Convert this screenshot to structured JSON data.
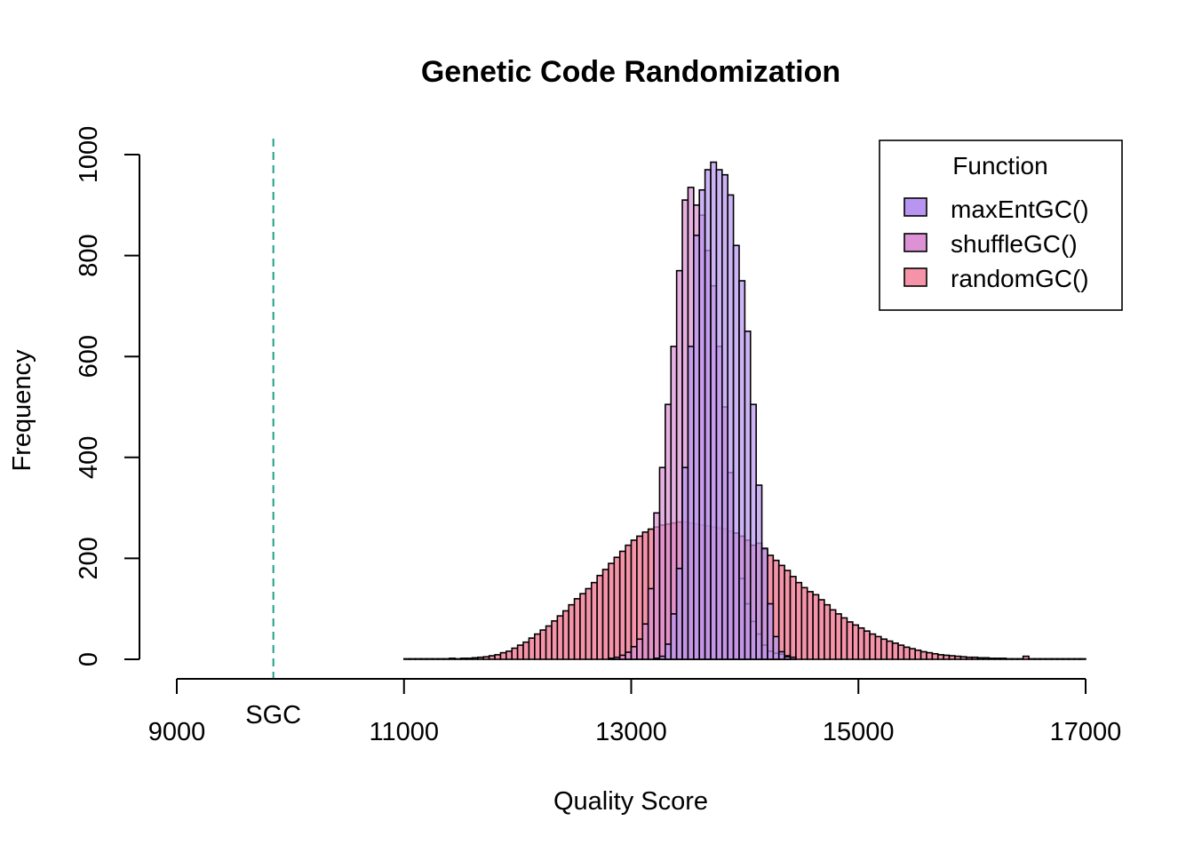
{
  "chart_data": {
    "type": "bar",
    "title": "Genetic Code Randomization",
    "xlabel": "Quality Score",
    "ylabel": "Frequency",
    "xlim": [
      9000,
      17000
    ],
    "ylim": [
      0,
      1000
    ],
    "x_ticks": [
      "9000",
      "11000",
      "13000",
      "15000",
      "17000"
    ],
    "y_ticks": [
      "0",
      "200",
      "400",
      "600",
      "800",
      "1000"
    ],
    "bin_width": 50,
    "grid": false,
    "legend": {
      "title": "Function",
      "placement": "top-right"
    },
    "reference_line": {
      "label": "SGC",
      "x": 9850,
      "color": "#1f9e89",
      "style": "dashed"
    },
    "series": [
      {
        "name": "maxEntGC()",
        "color": "#b895f0",
        "bins": [
          [
            13200,
            2
          ],
          [
            13250,
            6
          ],
          [
            13300,
            30
          ],
          [
            13350,
            90
          ],
          [
            13400,
            180
          ],
          [
            13450,
            380
          ],
          [
            13500,
            620
          ],
          [
            13550,
            840
          ],
          [
            13600,
            930
          ],
          [
            13650,
            970
          ],
          [
            13700,
            985
          ],
          [
            13750,
            970
          ],
          [
            13800,
            960
          ],
          [
            13850,
            920
          ],
          [
            13900,
            820
          ],
          [
            13950,
            750
          ],
          [
            14000,
            650
          ],
          [
            14050,
            505
          ],
          [
            14100,
            345
          ],
          [
            14150,
            220
          ],
          [
            14200,
            110
          ],
          [
            14250,
            45
          ],
          [
            14300,
            15
          ],
          [
            14350,
            5
          ]
        ]
      },
      {
        "name": "shuffleGC()",
        "color": "#dd92d6",
        "bins": [
          [
            12800,
            2
          ],
          [
            12850,
            4
          ],
          [
            12900,
            8
          ],
          [
            12950,
            14
          ],
          [
            13000,
            25
          ],
          [
            13050,
            40
          ],
          [
            13100,
            70
          ],
          [
            13150,
            140
          ],
          [
            13200,
            290
          ],
          [
            13250,
            380
          ],
          [
            13300,
            505
          ],
          [
            13350,
            620
          ],
          [
            13400,
            770
          ],
          [
            13450,
            910
          ],
          [
            13500,
            935
          ],
          [
            13550,
            900
          ],
          [
            13600,
            880
          ],
          [
            13650,
            810
          ],
          [
            13700,
            740
          ],
          [
            13750,
            620
          ],
          [
            13800,
            500
          ],
          [
            13850,
            370
          ],
          [
            13900,
            250
          ],
          [
            13950,
            160
          ],
          [
            14000,
            110
          ],
          [
            14050,
            75
          ],
          [
            14100,
            50
          ],
          [
            14150,
            28
          ],
          [
            14200,
            16
          ],
          [
            14250,
            12
          ],
          [
            14300,
            10
          ],
          [
            14350,
            7
          ],
          [
            14400,
            4
          ]
        ]
      },
      {
        "name": "randomGC()",
        "color": "#f593a8",
        "bins": [
          [
            11000,
            1
          ],
          [
            11050,
            1
          ],
          [
            11100,
            1
          ],
          [
            11150,
            1
          ],
          [
            11200,
            1
          ],
          [
            11250,
            1
          ],
          [
            11300,
            1
          ],
          [
            11350,
            1
          ],
          [
            11400,
            2
          ],
          [
            11450,
            1
          ],
          [
            11500,
            2
          ],
          [
            11550,
            2
          ],
          [
            11600,
            3
          ],
          [
            11650,
            4
          ],
          [
            11700,
            5
          ],
          [
            11750,
            7
          ],
          [
            11800,
            9
          ],
          [
            11850,
            13
          ],
          [
            11900,
            16
          ],
          [
            11950,
            22
          ],
          [
            12000,
            28
          ],
          [
            12050,
            34
          ],
          [
            12100,
            42
          ],
          [
            12150,
            50
          ],
          [
            12200,
            58
          ],
          [
            12250,
            66
          ],
          [
            12300,
            76
          ],
          [
            12350,
            86
          ],
          [
            12400,
            96
          ],
          [
            12450,
            108
          ],
          [
            12500,
            120
          ],
          [
            12550,
            130
          ],
          [
            12600,
            140
          ],
          [
            12650,
            152
          ],
          [
            12700,
            166
          ],
          [
            12750,
            178
          ],
          [
            12800,
            190
          ],
          [
            12850,
            202
          ],
          [
            12900,
            214
          ],
          [
            12950,
            226
          ],
          [
            13000,
            236
          ],
          [
            13050,
            244
          ],
          [
            13100,
            252
          ],
          [
            13150,
            258
          ],
          [
            13200,
            262
          ],
          [
            13250,
            266
          ],
          [
            13300,
            268
          ],
          [
            13350,
            270
          ],
          [
            13400,
            272
          ],
          [
            13450,
            272
          ],
          [
            13500,
            270
          ],
          [
            13550,
            268
          ],
          [
            13600,
            266
          ],
          [
            13650,
            264
          ],
          [
            13700,
            262
          ],
          [
            13750,
            260
          ],
          [
            13800,
            258
          ],
          [
            13850,
            254
          ],
          [
            13900,
            250
          ],
          [
            13950,
            244
          ],
          [
            14000,
            236
          ],
          [
            14050,
            226
          ],
          [
            14100,
            230
          ],
          [
            14150,
            218
          ],
          [
            14200,
            206
          ],
          [
            14250,
            196
          ],
          [
            14300,
            186
          ],
          [
            14350,
            176
          ],
          [
            14400,
            164
          ],
          [
            14450,
            152
          ],
          [
            14500,
            142
          ],
          [
            14550,
            134
          ],
          [
            14600,
            128
          ],
          [
            14650,
            118
          ],
          [
            14700,
            108
          ],
          [
            14750,
            98
          ],
          [
            14800,
            90
          ],
          [
            14850,
            82
          ],
          [
            14900,
            74
          ],
          [
            14950,
            68
          ],
          [
            15000,
            62
          ],
          [
            15050,
            56
          ],
          [
            15100,
            50
          ],
          [
            15150,
            45
          ],
          [
            15200,
            40
          ],
          [
            15250,
            36
          ],
          [
            15300,
            32
          ],
          [
            15350,
            28
          ],
          [
            15400,
            24
          ],
          [
            15450,
            21
          ],
          [
            15500,
            18
          ],
          [
            15550,
            15
          ],
          [
            15600,
            13
          ],
          [
            15650,
            11
          ],
          [
            15700,
            9
          ],
          [
            15750,
            8
          ],
          [
            15800,
            7
          ],
          [
            15850,
            6
          ],
          [
            15900,
            5
          ],
          [
            15950,
            4
          ],
          [
            16000,
            4
          ],
          [
            16050,
            3
          ],
          [
            16100,
            3
          ],
          [
            16150,
            2
          ],
          [
            16200,
            2
          ],
          [
            16250,
            2
          ],
          [
            16300,
            1
          ],
          [
            16350,
            1
          ],
          [
            16400,
            1
          ],
          [
            16450,
            6
          ],
          [
            16500,
            1
          ],
          [
            16550,
            1
          ],
          [
            16600,
            1
          ],
          [
            16650,
            1
          ],
          [
            16700,
            1
          ],
          [
            16750,
            1
          ],
          [
            16800,
            1
          ],
          [
            16850,
            1
          ],
          [
            16900,
            1
          ],
          [
            16950,
            1
          ]
        ]
      }
    ]
  }
}
